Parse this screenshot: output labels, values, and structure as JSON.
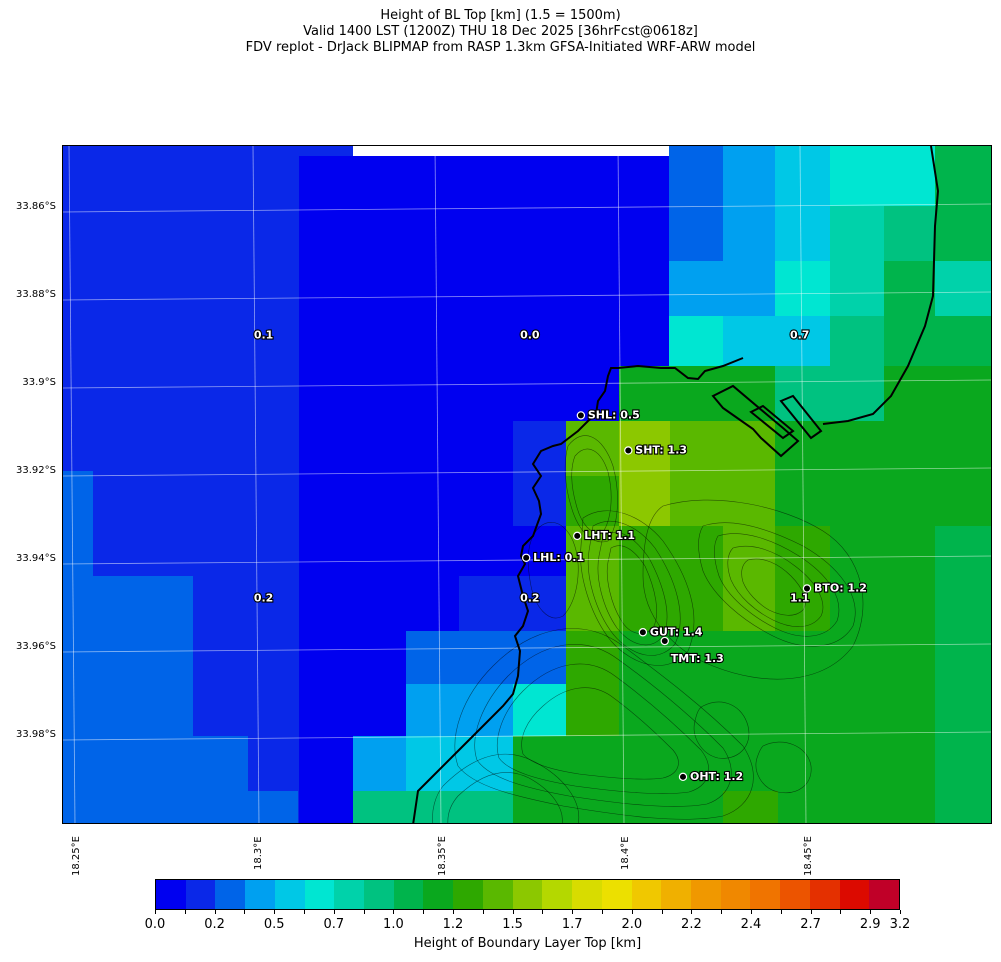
{
  "title": {
    "line1": "Height of BL Top [km] (1.5 = 1500m)",
    "line2": "Valid 1400 LST (1200Z) THU 18 Dec 2025 [36hrFcst@0618z]",
    "line3": "FDV replot - DrJack BLIPMAP from RASP 1.3km GFSA-Initiated WRF-ARW model"
  },
  "map": {
    "lat_labels": [
      "33.86°S",
      "33.88°S",
      "33.9°S",
      "33.92°S",
      "33.94°S",
      "33.96°S",
      "33.98°S"
    ],
    "lon_labels": [
      "18.25°E",
      "18.3°E",
      "18.35°E",
      "18.4°E",
      "18.45°E"
    ],
    "lon_range": [
      18.245,
      18.5
    ],
    "lat_range": [
      -33.847,
      -34.002
    ],
    "field_values": [
      {
        "lon": 18.3,
        "lat": -33.891,
        "text": "0.1"
      },
      {
        "lon": 18.373,
        "lat": -33.891,
        "text": "0.0"
      },
      {
        "lon": 18.447,
        "lat": -33.891,
        "text": "0.7"
      },
      {
        "lon": 18.3,
        "lat": -33.951,
        "text": "0.2"
      },
      {
        "lon": 18.373,
        "lat": -33.951,
        "text": "0.2"
      },
      {
        "lon": 18.447,
        "lat": -33.951,
        "text": "1.1"
      }
    ],
    "stations": [
      {
        "id": "SHL",
        "text": "SHL: 0.5",
        "lon": 18.387,
        "lat": -33.9085
      },
      {
        "id": "SHT",
        "text": "SHT: 1.3",
        "lon": 18.4,
        "lat": -33.9165
      },
      {
        "id": "LHT",
        "text": "LHT: 1.1",
        "lon": 18.386,
        "lat": -33.936
      },
      {
        "id": "LHL",
        "text": "LHL: 0.1",
        "lon": 18.372,
        "lat": -33.941
      },
      {
        "id": "BTO",
        "text": "BTO: 1.2",
        "lon": 18.449,
        "lat": -33.948
      },
      {
        "id": "GUT",
        "text": "GUT: 1.4",
        "lon": 18.404,
        "lat": -33.958
      },
      {
        "id": "TMT",
        "text": "TMT: 1.3",
        "lon": 18.41,
        "lat": -33.96
      },
      {
        "id": "OHT",
        "text": "OHT: 1.2",
        "lon": 18.415,
        "lat": -33.991
      }
    ]
  },
  "colorbar": {
    "title": "Height of Boundary Layer Top [km]",
    "colors": [
      "#0000f0",
      "#0a28e8",
      "#0064e8",
      "#00a0f0",
      "#00c8e6",
      "#00e6d2",
      "#00d2aa",
      "#00c280",
      "#00b44c",
      "#0aa81e",
      "#2ea800",
      "#5ab800",
      "#8cc800",
      "#b4d800",
      "#d8dc00",
      "#ece000",
      "#f0c800",
      "#f0b000",
      "#f09800",
      "#f08800",
      "#f07400",
      "#ec5400",
      "#e43000",
      "#dc0a00",
      "#c00028"
    ],
    "tick_values": [
      0.0,
      0.1,
      0.2,
      0.35,
      0.5,
      0.6,
      0.7,
      0.85,
      1.0,
      1.1,
      1.2,
      1.35,
      1.5,
      1.6,
      1.7,
      1.85,
      2.0,
      2.1,
      2.2,
      2.35,
      2.4,
      2.55,
      2.7,
      2.8,
      2.9,
      3.2
    ],
    "labels": [
      "0.0",
      "0.2",
      "0.5",
      "0.7",
      "1.0",
      "1.2",
      "1.5",
      "1.7",
      "2.0",
      "2.2",
      "2.4",
      "2.7",
      "2.9",
      "3.2"
    ]
  }
}
